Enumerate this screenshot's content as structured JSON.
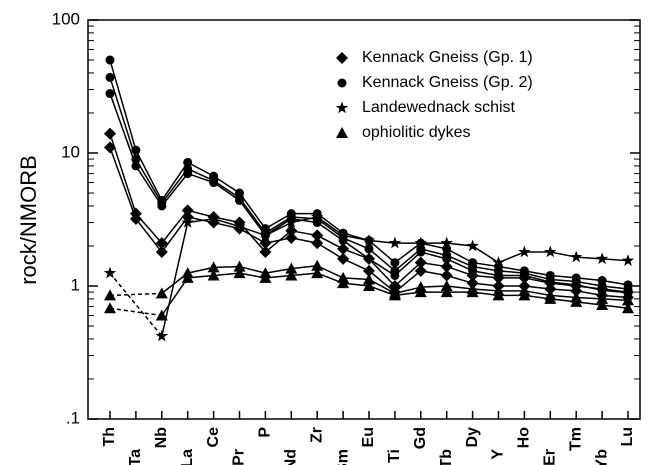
{
  "chart_data": {
    "type": "spider",
    "y_label": "rock/NMORB",
    "log_scale": true,
    "categories": [
      "Th",
      "Ta",
      "Nb",
      "La",
      "Ce",
      "Pr",
      "P",
      "Nd",
      "Zr",
      "Sm",
      "Eu",
      "Ti",
      "Gd",
      "Tb",
      "Dy",
      "Y",
      "Ho",
      "Er",
      "Tm",
      "Yb",
      "Lu"
    ],
    "ylim": [
      0.1,
      100
    ],
    "yticks": [
      {
        "value": 0.1,
        "label": ".1"
      },
      1,
      10,
      100
    ],
    "legend": "top-right",
    "color": "#000000",
    "series": [
      {
        "name": "Kennack Gneiss (Gp. 1)",
        "marker": "diamond",
        "samples": [
          [
            14,
            3.5,
            2.1,
            3.7,
            3.3,
            3.0,
            1.8,
            2.6,
            2.4,
            1.9,
            1.6,
            1.0,
            1.5,
            1.4,
            1.2,
            1.15,
            1.15,
            1.05,
            1.0,
            0.95,
            0.9
          ],
          [
            11,
            3.2,
            1.8,
            3.3,
            3.0,
            2.7,
            2.1,
            2.3,
            2.1,
            1.6,
            1.3,
            0.9,
            1.3,
            1.2,
            1.05,
            1.0,
            1.0,
            0.95,
            0.92,
            0.85,
            0.82
          ]
        ]
      },
      {
        "name": "Kennack Gneiss (Gp. 2)",
        "marker": "circle",
        "samples": [
          [
            50,
            10.5,
            4.4,
            8.5,
            6.7,
            5.0,
            2.7,
            3.5,
            3.5,
            2.5,
            2.2,
            1.5,
            2.1,
            1.9,
            1.5,
            1.4,
            1.3,
            1.2,
            1.15,
            1.1,
            1.02
          ],
          [
            37,
            9.0,
            4.2,
            7.6,
            6.2,
            4.6,
            2.5,
            3.3,
            3.2,
            2.3,
            1.9,
            1.3,
            1.9,
            1.7,
            1.4,
            1.3,
            1.25,
            1.12,
            1.08,
            1.0,
            0.95
          ],
          [
            28,
            8.0,
            4.0,
            7.0,
            6.0,
            4.4,
            2.4,
            3.2,
            3.0,
            2.2,
            1.6,
            1.2,
            1.8,
            1.6,
            1.3,
            1.2,
            1.2,
            1.07,
            1.02,
            0.93,
            0.89
          ]
        ]
      },
      {
        "name": "Landewednack schist",
        "marker": "star",
        "samples": [
          [
            1.25,
            null,
            0.42,
            3.0,
            3.2,
            2.8,
            2.4,
            3.0,
            3.3,
            2.4,
            2.2,
            2.1,
            2.1,
            2.1,
            2.0,
            1.5,
            1.8,
            1.8,
            1.65,
            1.6,
            1.55
          ]
        ]
      },
      {
        "name": "ophiolitic dykes",
        "marker": "triangle",
        "samples": [
          [
            0.85,
            null,
            0.88,
            1.25,
            1.38,
            1.4,
            1.25,
            1.35,
            1.42,
            1.15,
            1.12,
            0.88,
            0.98,
            1.0,
            0.95,
            0.92,
            0.92,
            0.85,
            0.82,
            0.8,
            0.78
          ],
          [
            0.68,
            null,
            0.6,
            1.15,
            1.2,
            1.25,
            1.15,
            1.2,
            1.25,
            1.05,
            1.0,
            0.85,
            0.9,
            0.9,
            0.9,
            0.85,
            0.85,
            0.8,
            0.76,
            0.72,
            0.68
          ]
        ]
      }
    ]
  }
}
